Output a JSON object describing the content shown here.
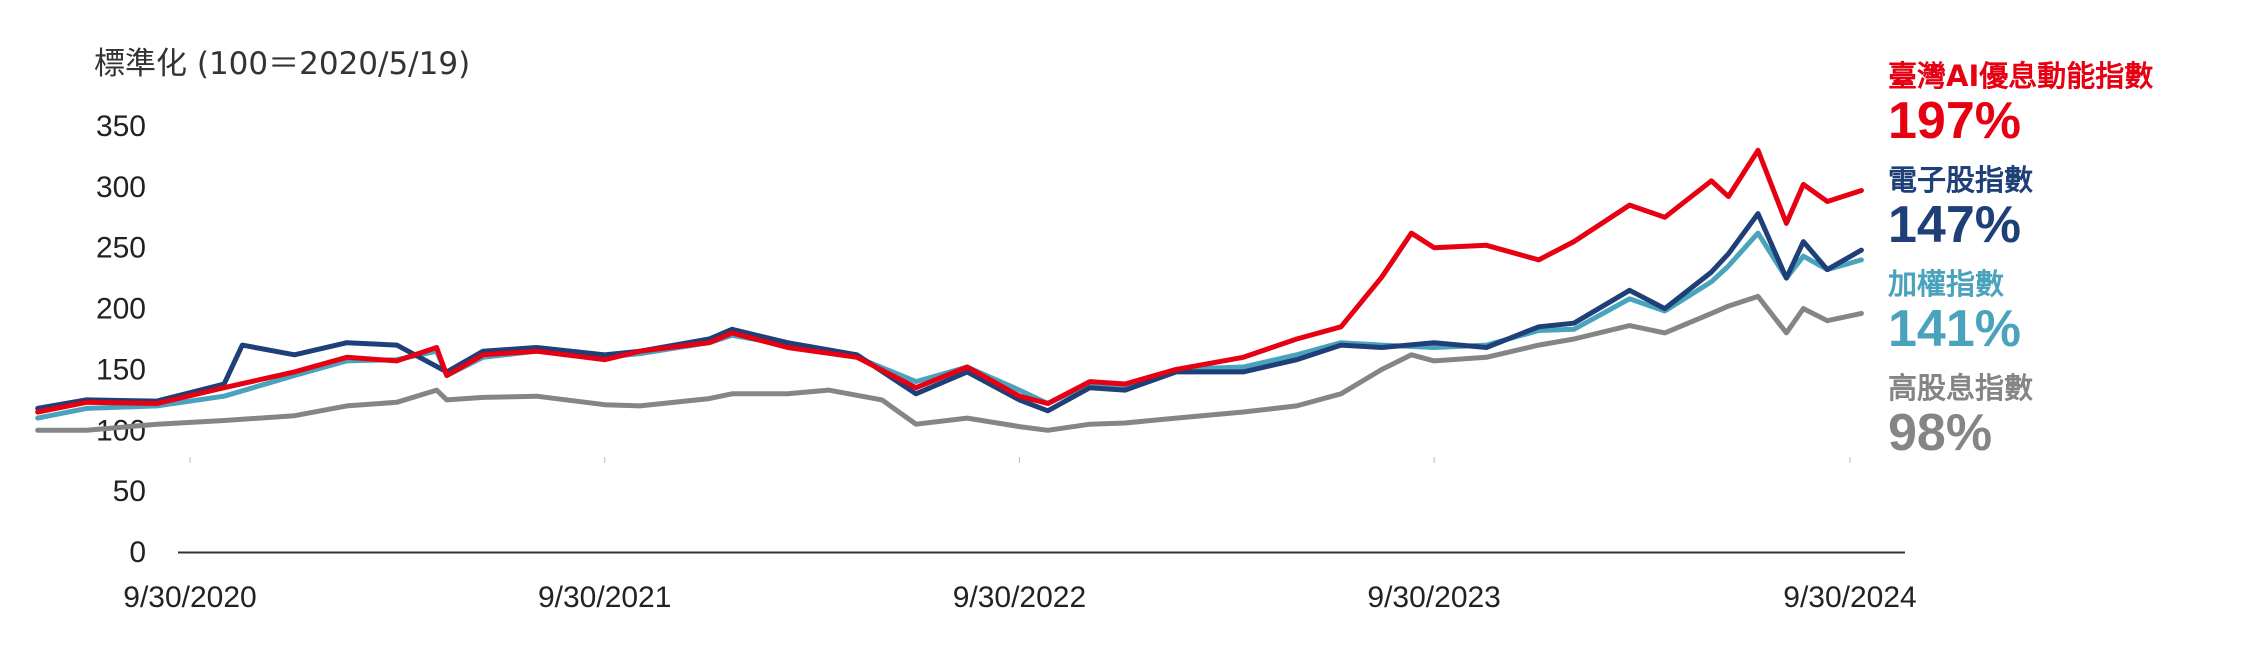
{
  "chart_data": {
    "type": "line",
    "ylabel": "標準化 (100＝2020/5/19)",
    "ylim": [
      0,
      350
    ],
    "y_ticks": [
      "0",
      "50",
      "100",
      "150",
      "200",
      "250",
      "300",
      "350"
    ],
    "x_ticks": [
      "9/30/2020",
      "9/30/2021",
      "9/30/2022",
      "9/30/2023",
      "9/30/2024"
    ],
    "x_range": [
      "2020-05-19",
      "2024-10-10"
    ],
    "grid": false,
    "legend_position": "right",
    "series": [
      {
        "name": "臺灣AI優息動能指數",
        "return": "197%",
        "color": "#e60012",
        "points": [
          [
            "2020-05-19",
            115
          ],
          [
            "2020-07-01",
            123
          ],
          [
            "2020-09-01",
            122
          ],
          [
            "2020-10-30",
            135
          ],
          [
            "2020-12-31",
            148
          ],
          [
            "2021-02-15",
            160
          ],
          [
            "2021-03-31",
            157
          ],
          [
            "2021-05-05",
            168
          ],
          [
            "2021-05-14",
            145
          ],
          [
            "2021-06-15",
            162
          ],
          [
            "2021-08-01",
            165
          ],
          [
            "2021-09-30",
            158
          ],
          [
            "2021-10-31",
            165
          ],
          [
            "2021-12-31",
            172
          ],
          [
            "2022-01-20",
            180
          ],
          [
            "2022-03-10",
            168
          ],
          [
            "2022-05-10",
            160
          ],
          [
            "2022-07-01",
            135
          ],
          [
            "2022-08-15",
            152
          ],
          [
            "2022-09-30",
            128
          ],
          [
            "2022-10-25",
            122
          ],
          [
            "2022-12-01",
            140
          ],
          [
            "2023-01-01",
            138
          ],
          [
            "2023-02-15",
            150
          ],
          [
            "2023-04-15",
            160
          ],
          [
            "2023-06-01",
            175
          ],
          [
            "2023-07-10",
            185
          ],
          [
            "2023-08-15",
            226
          ],
          [
            "2023-09-10",
            262
          ],
          [
            "2023-09-30",
            250
          ],
          [
            "2023-11-15",
            252
          ],
          [
            "2023-12-31",
            240
          ],
          [
            "2024-01-31",
            255
          ],
          [
            "2024-03-20",
            285
          ],
          [
            "2024-04-20",
            275
          ],
          [
            "2024-05-31",
            305
          ],
          [
            "2024-06-15",
            292
          ],
          [
            "2024-07-11",
            330
          ],
          [
            "2024-08-05",
            270
          ],
          [
            "2024-08-20",
            302
          ],
          [
            "2024-09-10",
            288
          ],
          [
            "2024-10-10",
            297
          ]
        ]
      },
      {
        "name": "電子股指數",
        "return": "147%",
        "color": "#1e3f78",
        "points": [
          [
            "2020-05-19",
            118
          ],
          [
            "2020-07-01",
            125
          ],
          [
            "2020-09-01",
            124
          ],
          [
            "2020-10-30",
            138
          ],
          [
            "2020-11-15",
            170
          ],
          [
            "2020-12-31",
            162
          ],
          [
            "2021-02-15",
            172
          ],
          [
            "2021-03-31",
            170
          ],
          [
            "2021-05-14",
            148
          ],
          [
            "2021-06-15",
            165
          ],
          [
            "2021-08-01",
            168
          ],
          [
            "2021-09-30",
            162
          ],
          [
            "2021-10-31",
            165
          ],
          [
            "2021-12-31",
            175
          ],
          [
            "2022-01-20",
            183
          ],
          [
            "2022-03-10",
            172
          ],
          [
            "2022-05-10",
            162
          ],
          [
            "2022-07-01",
            130
          ],
          [
            "2022-08-15",
            148
          ],
          [
            "2022-09-30",
            125
          ],
          [
            "2022-10-25",
            116
          ],
          [
            "2022-12-01",
            135
          ],
          [
            "2023-01-01",
            133
          ],
          [
            "2023-02-15",
            148
          ],
          [
            "2023-04-15",
            148
          ],
          [
            "2023-06-01",
            158
          ],
          [
            "2023-07-10",
            170
          ],
          [
            "2023-08-15",
            168
          ],
          [
            "2023-09-30",
            172
          ],
          [
            "2023-11-15",
            168
          ],
          [
            "2023-12-31",
            185
          ],
          [
            "2024-01-31",
            188
          ],
          [
            "2024-03-20",
            215
          ],
          [
            "2024-04-20",
            200
          ],
          [
            "2024-05-31",
            230
          ],
          [
            "2024-06-15",
            245
          ],
          [
            "2024-07-11",
            278
          ],
          [
            "2024-08-05",
            225
          ],
          [
            "2024-08-20",
            255
          ],
          [
            "2024-09-10",
            232
          ],
          [
            "2024-10-10",
            248
          ]
        ]
      },
      {
        "name": "加權指數",
        "return": "141%",
        "color": "#4aa3bd",
        "points": [
          [
            "2020-05-19",
            110
          ],
          [
            "2020-07-01",
            118
          ],
          [
            "2020-09-01",
            120
          ],
          [
            "2020-10-30",
            128
          ],
          [
            "2020-12-31",
            145
          ],
          [
            "2021-02-15",
            157
          ],
          [
            "2021-03-31",
            158
          ],
          [
            "2021-05-05",
            165
          ],
          [
            "2021-05-14",
            145
          ],
          [
            "2021-06-15",
            160
          ],
          [
            "2021-08-01",
            165
          ],
          [
            "2021-09-30",
            160
          ],
          [
            "2021-10-31",
            163
          ],
          [
            "2021-12-31",
            172
          ],
          [
            "2022-01-20",
            178
          ],
          [
            "2022-03-10",
            170
          ],
          [
            "2022-05-10",
            160
          ],
          [
            "2022-07-01",
            140
          ],
          [
            "2022-08-15",
            152
          ],
          [
            "2022-09-30",
            133
          ],
          [
            "2022-10-25",
            122
          ],
          [
            "2022-12-01",
            138
          ],
          [
            "2023-01-01",
            136
          ],
          [
            "2023-02-15",
            150
          ],
          [
            "2023-04-15",
            152
          ],
          [
            "2023-06-01",
            162
          ],
          [
            "2023-07-10",
            172
          ],
          [
            "2023-08-15",
            170
          ],
          [
            "2023-09-30",
            168
          ],
          [
            "2023-11-15",
            170
          ],
          [
            "2023-12-31",
            182
          ],
          [
            "2024-01-31",
            183
          ],
          [
            "2024-03-20",
            208
          ],
          [
            "2024-04-20",
            198
          ],
          [
            "2024-05-31",
            222
          ],
          [
            "2024-06-15",
            235
          ],
          [
            "2024-07-11",
            262
          ],
          [
            "2024-08-05",
            225
          ],
          [
            "2024-08-20",
            243
          ],
          [
            "2024-09-10",
            232
          ],
          [
            "2024-10-10",
            240
          ]
        ]
      },
      {
        "name": "高股息指數",
        "return": "98%",
        "color": "#858585",
        "points": [
          [
            "2020-05-19",
            100
          ],
          [
            "2020-07-01",
            100
          ],
          [
            "2020-09-01",
            105
          ],
          [
            "2020-10-30",
            108
          ],
          [
            "2020-12-31",
            112
          ],
          [
            "2021-02-15",
            120
          ],
          [
            "2021-03-31",
            123
          ],
          [
            "2021-05-05",
            133
          ],
          [
            "2021-05-14",
            125
          ],
          [
            "2021-06-15",
            127
          ],
          [
            "2021-08-01",
            128
          ],
          [
            "2021-09-30",
            121
          ],
          [
            "2021-10-31",
            120
          ],
          [
            "2021-12-31",
            126
          ],
          [
            "2022-01-20",
            130
          ],
          [
            "2022-03-10",
            130
          ],
          [
            "2022-04-15",
            133
          ],
          [
            "2022-06-01",
            125
          ],
          [
            "2022-07-01",
            105
          ],
          [
            "2022-08-15",
            110
          ],
          [
            "2022-09-30",
            103
          ],
          [
            "2022-10-25",
            100
          ],
          [
            "2022-12-01",
            105
          ],
          [
            "2023-01-01",
            106
          ],
          [
            "2023-02-15",
            110
          ],
          [
            "2023-04-15",
            115
          ],
          [
            "2023-06-01",
            120
          ],
          [
            "2023-07-10",
            130
          ],
          [
            "2023-08-15",
            150
          ],
          [
            "2023-09-10",
            162
          ],
          [
            "2023-09-30",
            157
          ],
          [
            "2023-11-15",
            160
          ],
          [
            "2023-12-31",
            170
          ],
          [
            "2024-01-31",
            175
          ],
          [
            "2024-03-20",
            186
          ],
          [
            "2024-04-20",
            180
          ],
          [
            "2024-05-31",
            196
          ],
          [
            "2024-06-15",
            202
          ],
          [
            "2024-07-11",
            210
          ],
          [
            "2024-08-05",
            180
          ],
          [
            "2024-08-20",
            200
          ],
          [
            "2024-09-10",
            190
          ],
          [
            "2024-10-10",
            196
          ]
        ]
      }
    ]
  }
}
